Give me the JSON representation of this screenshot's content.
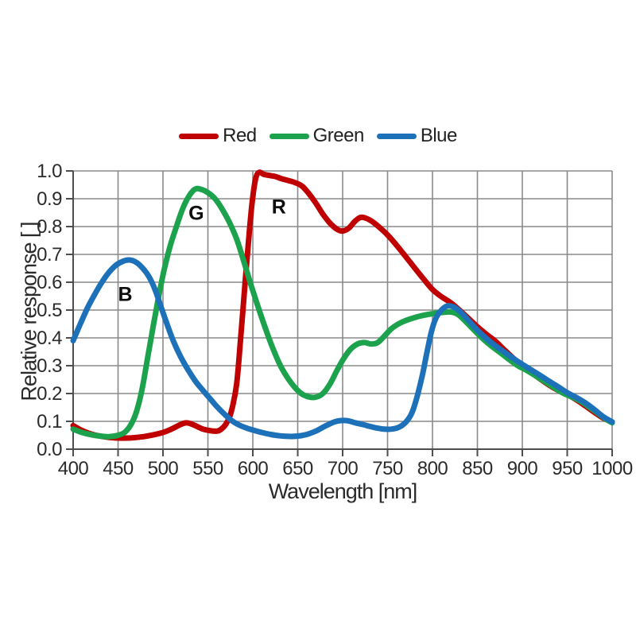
{
  "legend": {
    "items": [
      {
        "label": "Red",
        "color": "#c00000"
      },
      {
        "label": "Green",
        "color": "#1ca24c"
      },
      {
        "label": "Blue",
        "color": "#1c71b8"
      }
    ]
  },
  "axes": {
    "x": {
      "title": "Wavelength [nm]",
      "ticks": [
        "400",
        "450",
        "500",
        "550",
        "600",
        "650",
        "700",
        "750",
        "800",
        "850",
        "900",
        "950",
        "1000"
      ]
    },
    "y": {
      "title": "Relative response [ ]",
      "ticks": [
        "0.0",
        "0.1",
        "0.2",
        "0.3",
        "0.4",
        "0.5",
        "0.6",
        "0.7",
        "0.8",
        "0.9",
        "1.0"
      ]
    }
  },
  "annotations": [
    {
      "text": "B",
      "x_nm": 458,
      "y_val": 0.555
    },
    {
      "text": "G",
      "x_nm": 537,
      "y_val": 0.845
    },
    {
      "text": "R",
      "x_nm": 629,
      "y_val": 0.868
    }
  ],
  "style": {
    "grid_color": "#8a8a8a",
    "axis_color": "#4d4d4d",
    "line_width": 7
  },
  "chart_data": {
    "type": "line",
    "title": "",
    "xlabel": "Wavelength [nm]",
    "ylabel": "Relative response [ ]",
    "xlim": [
      400,
      1000
    ],
    "ylim": [
      0,
      1
    ],
    "grid": true,
    "legend_position": "top",
    "series": [
      {
        "name": "Red",
        "color": "#c00000",
        "points": [
          [
            400,
            0.085
          ],
          [
            408,
            0.07
          ],
          [
            416,
            0.059
          ],
          [
            424,
            0.051
          ],
          [
            432,
            0.046
          ],
          [
            440,
            0.042
          ],
          [
            450,
            0.04
          ],
          [
            460,
            0.04
          ],
          [
            470,
            0.042
          ],
          [
            480,
            0.046
          ],
          [
            490,
            0.052
          ],
          [
            500,
            0.06
          ],
          [
            508,
            0.07
          ],
          [
            516,
            0.083
          ],
          [
            523,
            0.093
          ],
          [
            528,
            0.094
          ],
          [
            535,
            0.086
          ],
          [
            543,
            0.074
          ],
          [
            550,
            0.068
          ],
          [
            557,
            0.065
          ],
          [
            563,
            0.068
          ],
          [
            570,
            0.09
          ],
          [
            576,
            0.135
          ],
          [
            582,
            0.235
          ],
          [
            587,
            0.42
          ],
          [
            591,
            0.58
          ],
          [
            595,
            0.74
          ],
          [
            599,
            0.88
          ],
          [
            603,
            0.97
          ],
          [
            607,
            0.995
          ],
          [
            612,
            0.988
          ],
          [
            618,
            0.984
          ],
          [
            625,
            0.98
          ],
          [
            632,
            0.972
          ],
          [
            640,
            0.965
          ],
          [
            648,
            0.957
          ],
          [
            655,
            0.945
          ],
          [
            662,
            0.92
          ],
          [
            670,
            0.885
          ],
          [
            678,
            0.845
          ],
          [
            686,
            0.812
          ],
          [
            694,
            0.79
          ],
          [
            700,
            0.784
          ],
          [
            707,
            0.795
          ],
          [
            714,
            0.82
          ],
          [
            720,
            0.833
          ],
          [
            726,
            0.83
          ],
          [
            733,
            0.818
          ],
          [
            740,
            0.8
          ],
          [
            750,
            0.77
          ],
          [
            760,
            0.733
          ],
          [
            770,
            0.693
          ],
          [
            780,
            0.652
          ],
          [
            790,
            0.612
          ],
          [
            800,
            0.574
          ],
          [
            810,
            0.548
          ],
          [
            820,
            0.527
          ],
          [
            830,
            0.5
          ],
          [
            840,
            0.47
          ],
          [
            850,
            0.44
          ],
          [
            860,
            0.413
          ],
          [
            870,
            0.388
          ],
          [
            880,
            0.357
          ],
          [
            890,
            0.327
          ],
          [
            900,
            0.3
          ],
          [
            910,
            0.276
          ],
          [
            920,
            0.252
          ],
          [
            930,
            0.23
          ],
          [
            940,
            0.211
          ],
          [
            950,
            0.196
          ],
          [
            960,
            0.178
          ],
          [
            970,
            0.156
          ],
          [
            980,
            0.133
          ],
          [
            990,
            0.112
          ],
          [
            1000,
            0.098
          ]
        ]
      },
      {
        "name": "Green",
        "color": "#1ca24c",
        "points": [
          [
            400,
            0.072
          ],
          [
            410,
            0.06
          ],
          [
            420,
            0.052
          ],
          [
            430,
            0.047
          ],
          [
            440,
            0.045
          ],
          [
            450,
            0.05
          ],
          [
            458,
            0.062
          ],
          [
            465,
            0.092
          ],
          [
            471,
            0.14
          ],
          [
            477,
            0.22
          ],
          [
            483,
            0.33
          ],
          [
            489,
            0.44
          ],
          [
            495,
            0.545
          ],
          [
            501,
            0.64
          ],
          [
            508,
            0.73
          ],
          [
            515,
            0.8
          ],
          [
            522,
            0.865
          ],
          [
            529,
            0.91
          ],
          [
            536,
            0.935
          ],
          [
            543,
            0.933
          ],
          [
            550,
            0.922
          ],
          [
            558,
            0.9
          ],
          [
            566,
            0.862
          ],
          [
            574,
            0.815
          ],
          [
            582,
            0.755
          ],
          [
            590,
            0.675
          ],
          [
            598,
            0.59
          ],
          [
            606,
            0.51
          ],
          [
            614,
            0.435
          ],
          [
            622,
            0.365
          ],
          [
            630,
            0.305
          ],
          [
            638,
            0.26
          ],
          [
            646,
            0.225
          ],
          [
            654,
            0.2
          ],
          [
            662,
            0.188
          ],
          [
            670,
            0.187
          ],
          [
            678,
            0.2
          ],
          [
            686,
            0.235
          ],
          [
            694,
            0.285
          ],
          [
            702,
            0.33
          ],
          [
            710,
            0.363
          ],
          [
            718,
            0.38
          ],
          [
            725,
            0.383
          ],
          [
            732,
            0.378
          ],
          [
            739,
            0.383
          ],
          [
            746,
            0.405
          ],
          [
            754,
            0.432
          ],
          [
            762,
            0.45
          ],
          [
            770,
            0.462
          ],
          [
            780,
            0.473
          ],
          [
            790,
            0.481
          ],
          [
            800,
            0.487
          ],
          [
            810,
            0.491
          ],
          [
            820,
            0.493
          ],
          [
            828,
            0.485
          ],
          [
            836,
            0.462
          ],
          [
            845,
            0.432
          ],
          [
            855,
            0.4
          ],
          [
            865,
            0.372
          ],
          [
            875,
            0.348
          ],
          [
            885,
            0.323
          ],
          [
            895,
            0.3
          ],
          [
            905,
            0.283
          ],
          [
            915,
            0.263
          ],
          [
            925,
            0.243
          ],
          [
            935,
            0.222
          ],
          [
            945,
            0.202
          ],
          [
            955,
            0.188
          ],
          [
            965,
            0.172
          ],
          [
            975,
            0.15
          ],
          [
            985,
            0.127
          ],
          [
            993,
            0.108
          ],
          [
            1000,
            0.095
          ]
        ]
      },
      {
        "name": "Blue",
        "color": "#1c71b8",
        "points": [
          [
            400,
            0.39
          ],
          [
            408,
            0.45
          ],
          [
            416,
            0.508
          ],
          [
            424,
            0.556
          ],
          [
            432,
            0.6
          ],
          [
            440,
            0.636
          ],
          [
            448,
            0.662
          ],
          [
            456,
            0.676
          ],
          [
            463,
            0.68
          ],
          [
            470,
            0.672
          ],
          [
            477,
            0.652
          ],
          [
            484,
            0.622
          ],
          [
            491,
            0.575
          ],
          [
            498,
            0.51
          ],
          [
            505,
            0.445
          ],
          [
            512,
            0.385
          ],
          [
            520,
            0.33
          ],
          [
            528,
            0.285
          ],
          [
            536,
            0.245
          ],
          [
            544,
            0.213
          ],
          [
            552,
            0.183
          ],
          [
            560,
            0.153
          ],
          [
            568,
            0.127
          ],
          [
            576,
            0.104
          ],
          [
            584,
            0.088
          ],
          [
            592,
            0.077
          ],
          [
            600,
            0.069
          ],
          [
            610,
            0.06
          ],
          [
            620,
            0.053
          ],
          [
            630,
            0.048
          ],
          [
            640,
            0.046
          ],
          [
            650,
            0.047
          ],
          [
            660,
            0.053
          ],
          [
            670,
            0.065
          ],
          [
            680,
            0.082
          ],
          [
            690,
            0.097
          ],
          [
            698,
            0.103
          ],
          [
            706,
            0.102
          ],
          [
            714,
            0.095
          ],
          [
            722,
            0.089
          ],
          [
            730,
            0.082
          ],
          [
            738,
            0.076
          ],
          [
            746,
            0.072
          ],
          [
            754,
            0.072
          ],
          [
            762,
            0.078
          ],
          [
            770,
            0.096
          ],
          [
            777,
            0.13
          ],
          [
            783,
            0.19
          ],
          [
            789,
            0.27
          ],
          [
            794,
            0.35
          ],
          [
            799,
            0.425
          ],
          [
            804,
            0.472
          ],
          [
            810,
            0.5
          ],
          [
            816,
            0.514
          ],
          [
            822,
            0.513
          ],
          [
            830,
            0.497
          ],
          [
            840,
            0.463
          ],
          [
            850,
            0.428
          ],
          [
            860,
            0.398
          ],
          [
            870,
            0.372
          ],
          [
            880,
            0.349
          ],
          [
            890,
            0.326
          ],
          [
            900,
            0.305
          ],
          [
            910,
            0.285
          ],
          [
            920,
            0.265
          ],
          [
            930,
            0.244
          ],
          [
            940,
            0.224
          ],
          [
            950,
            0.203
          ],
          [
            960,
            0.186
          ],
          [
            970,
            0.167
          ],
          [
            980,
            0.143
          ],
          [
            990,
            0.117
          ],
          [
            1000,
            0.098
          ]
        ]
      }
    ]
  }
}
